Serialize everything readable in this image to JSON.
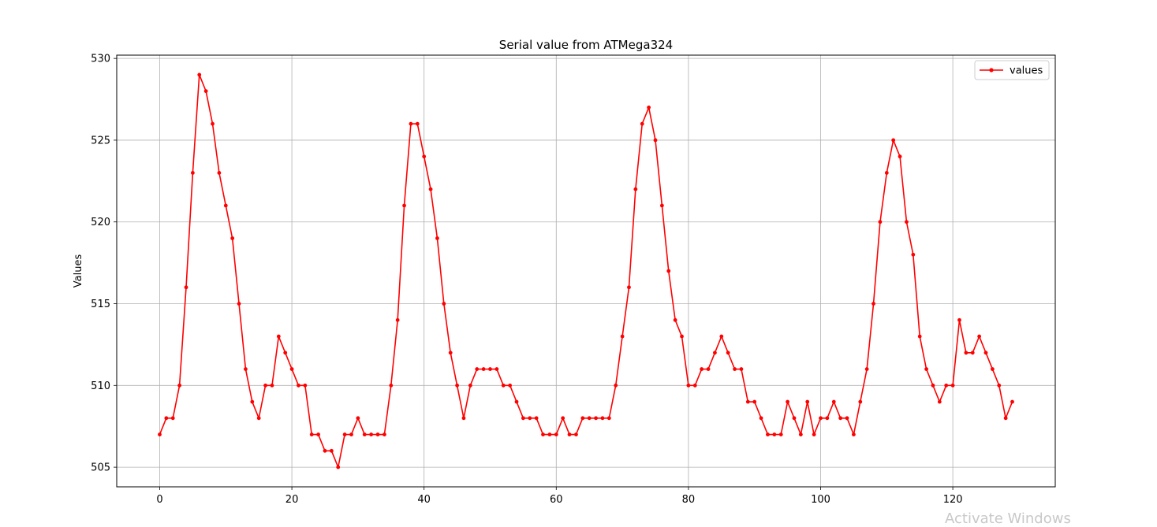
{
  "chart_data": {
    "type": "line",
    "title": "Serial value from ATMega324",
    "xlabel": "",
    "ylabel": "Values",
    "xlim": [
      -6.5,
      135.5
    ],
    "ylim": [
      503.8,
      530.2
    ],
    "xticks": [
      0,
      20,
      40,
      60,
      80,
      100,
      120
    ],
    "yticks": [
      505,
      510,
      515,
      520,
      525,
      530
    ],
    "grid": true,
    "legend_position": "upper-right",
    "series": [
      {
        "name": "values",
        "color": "#ff0000",
        "marker": "point",
        "x": [
          0,
          1,
          2,
          3,
          4,
          5,
          6,
          7,
          8,
          9,
          10,
          11,
          12,
          13,
          14,
          15,
          16,
          17,
          18,
          19,
          20,
          21,
          22,
          23,
          24,
          25,
          26,
          27,
          28,
          29,
          30,
          31,
          32,
          33,
          34,
          35,
          36,
          37,
          38,
          39,
          40,
          41,
          42,
          43,
          44,
          45,
          46,
          47,
          48,
          49,
          50,
          51,
          52,
          53,
          54,
          55,
          56,
          57,
          58,
          59,
          60,
          61,
          62,
          63,
          64,
          65,
          66,
          67,
          68,
          69,
          70,
          71,
          72,
          73,
          74,
          75,
          76,
          77,
          78,
          79,
          80,
          81,
          82,
          83,
          84,
          85,
          86,
          87,
          88,
          89,
          90,
          91,
          92,
          93,
          94,
          95,
          96,
          97,
          98,
          99,
          100,
          101,
          102,
          103,
          104,
          105,
          106,
          107,
          108,
          109,
          110,
          111,
          112,
          113,
          114,
          115,
          116,
          117,
          118,
          119,
          120,
          121,
          122,
          123,
          124,
          125,
          126,
          127,
          128,
          129
        ],
        "values": [
          507,
          508,
          508,
          510,
          516,
          523,
          529,
          528,
          526,
          523,
          521,
          519,
          515,
          511,
          509,
          508,
          510,
          510,
          513,
          512,
          511,
          510,
          510,
          507,
          507,
          506,
          506,
          505,
          507,
          507,
          508,
          507,
          507,
          507,
          507,
          510,
          514,
          521,
          526,
          526,
          524,
          522,
          519,
          515,
          512,
          510,
          508,
          510,
          511,
          511,
          511,
          511,
          510,
          510,
          509,
          508,
          508,
          508,
          507,
          507,
          507,
          508,
          507,
          507,
          508,
          508,
          508,
          508,
          508,
          510,
          513,
          516,
          522,
          526,
          527,
          525,
          521,
          517,
          514,
          513,
          510,
          510,
          511,
          511,
          512,
          513,
          512,
          511,
          511,
          509,
          509,
          508,
          507,
          507,
          507,
          509,
          508,
          507,
          509,
          507,
          508,
          508,
          509,
          508,
          508,
          507,
          509,
          511,
          515,
          520,
          523,
          525,
          524,
          520,
          518,
          513,
          511,
          510,
          509,
          510,
          510,
          514,
          512,
          512,
          513,
          512,
          511,
          510,
          508,
          509
        ]
      }
    ]
  },
  "watermark": "Activate Windows"
}
